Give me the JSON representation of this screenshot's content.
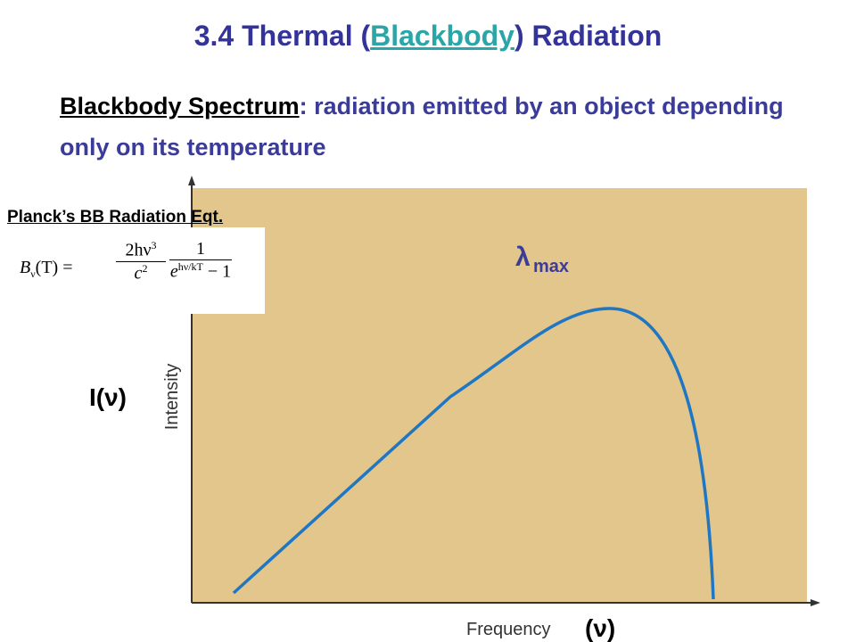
{
  "slide": {
    "title": {
      "before": "3.4 Thermal (",
      "link": "Blackbody",
      "after": ") Radiation"
    },
    "definition": {
      "term": "Blackbody Spectrum",
      "text": ": radiation emitted by an object depending only on its temperature"
    },
    "equation": {
      "label": "Planck’s BB Radiation Eqt.",
      "lhs": "B",
      "lhs_sub": "ν",
      "lhs_arg": "(T) =",
      "num1": "2hν",
      "num1_sup": "3",
      "den1": "c",
      "den1_sup": "2",
      "num2": "1",
      "den2_base": "e",
      "den2_exp": "hν/kT",
      "den2_tail": "− 1"
    },
    "plot": {
      "peak_label": "λ",
      "peak_sub": "max",
      "y_symbol": "I(ν)",
      "y_label": "Intensity",
      "x_label": "Frequency",
      "x_symbol": "(ν)"
    }
  }
}
